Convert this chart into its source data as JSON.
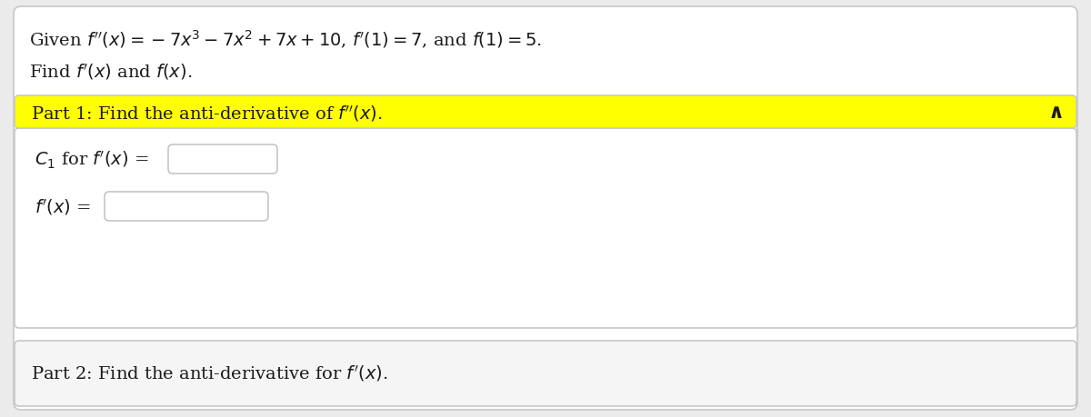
{
  "bg_color": "#ebebeb",
  "card_bg": "#ffffff",
  "yellow_bg": "#ffff00",
  "border_color": "#c8c8c8",
  "input_box_color": "#ffffff",
  "input_box_border": "#bbbbbb",
  "text_color": "#1a1a1a",
  "title_line1": "Given $f''(x) = -7x^3 - 7x^2 + 7x + 10$, $f'(1) = 7$, and $f(1) = 5$.",
  "title_line2": "Find $f'(x)$ and $f(x)$.",
  "part1_label": "Part 1: Find the anti-derivative of $f''(x)$.",
  "c1_label": "$C_1$ for $f'(x)$ =",
  "fprime_label": "$f'(x)$ =",
  "part2_label": "Part 2: Find the anti-derivative for $f'(x)$.",
  "caret": "∧",
  "font_size_main": 14,
  "font_size_part": 14
}
